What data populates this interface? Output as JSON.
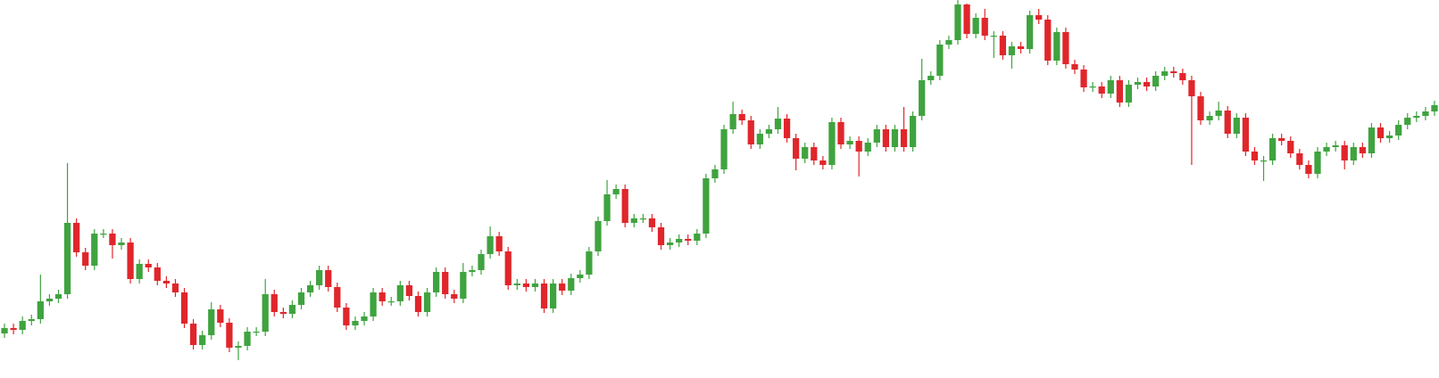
{
  "chart_data": {
    "type": "candlestick",
    "up_color": "#3fa33f",
    "down_color": "#e0262b",
    "ylim": [
      0,
      424
    ],
    "open": [
      50,
      56,
      54,
      64,
      66,
      86,
      89,
      94,
      174,
      141,
      126,
      162,
      162,
      149,
      152,
      111,
      128,
      124,
      109,
      106,
      96,
      61,
      37,
      48,
      77,
      62,
      34,
      36,
      52,
      52,
      94,
      74,
      72,
      82,
      96,
      104,
      121,
      102,
      79,
      59,
      64,
      69,
      96,
      86,
      86,
      104,
      92,
      74,
      96,
      119,
      94,
      89,
      119,
      121,
      139,
      159,
      142,
      104,
      106,
      102,
      106,
      78,
      106,
      98,
      112,
      116,
      142,
      176,
      206,
      212,
      174,
      179,
      179,
      169,
      149,
      152,
      156,
      154,
      162,
      224,
      234,
      279,
      296,
      289,
      262,
      274,
      279,
      291,
      269,
      246,
      259,
      244,
      239,
      287,
      262,
      266,
      254,
      264,
      279,
      259,
      279,
      259,
      294,
      334,
      339,
      374,
      379,
      419,
      386,
      404,
      384,
      384,
      362,
      372,
      369,
      407,
      402,
      356,
      388,
      352,
      346,
      326,
      327,
      319,
      334,
      309,
      329,
      332,
      327,
      339,
      344,
      342,
      334,
      316,
      289,
      294,
      300,
      274,
      292,
      254,
      244,
      244,
      269,
      266,
      252,
      239,
      229,
      254,
      259,
      261,
      244,
      259,
      252,
      281,
      269,
      272,
      284,
      292,
      294,
      299
    ],
    "high": [
      61,
      61,
      69,
      71,
      116,
      94,
      99,
      241,
      179,
      146,
      167,
      167,
      167,
      157,
      157,
      133,
      133,
      129,
      114,
      111,
      101,
      66,
      53,
      85,
      82,
      67,
      41,
      57,
      57,
      111,
      99,
      79,
      87,
      101,
      109,
      126,
      126,
      107,
      84,
      69,
      74,
      101,
      101,
      91,
      109,
      109,
      97,
      101,
      124,
      124,
      99,
      129,
      126,
      144,
      170,
      164,
      147,
      111,
      111,
      111,
      111,
      111,
      111,
      117,
      121,
      147,
      181,
      222,
      217,
      217,
      184,
      184,
      184,
      174,
      157,
      161,
      161,
      167,
      229,
      239,
      284,
      310,
      301,
      294,
      279,
      284,
      304,
      296,
      274,
      264,
      264,
      249,
      292,
      292,
      271,
      271,
      269,
      284,
      284,
      284,
      304,
      299,
      358,
      344,
      379,
      384,
      424,
      420,
      409,
      414,
      389,
      389,
      377,
      377,
      412,
      414,
      407,
      393,
      393,
      357,
      351,
      332,
      332,
      339,
      339,
      334,
      337,
      337,
      344,
      349,
      349,
      347,
      339,
      321,
      299,
      310,
      305,
      297,
      297,
      259,
      249,
      274,
      274,
      271,
      257,
      244,
      259,
      264,
      266,
      266,
      264,
      264,
      286,
      286,
      277,
      289,
      297,
      299,
      304,
      311
    ],
    "low": [
      45,
      49,
      49,
      59,
      61,
      81,
      84,
      89,
      136,
      121,
      121,
      157,
      134,
      144,
      106,
      106,
      119,
      104,
      101,
      91,
      56,
      32,
      32,
      43,
      57,
      29,
      20,
      31,
      47,
      47,
      69,
      67,
      67,
      77,
      91,
      99,
      97,
      74,
      54,
      54,
      59,
      64,
      81,
      81,
      81,
      87,
      69,
      69,
      91,
      89,
      84,
      84,
      114,
      116,
      134,
      137,
      99,
      99,
      97,
      97,
      73,
      73,
      93,
      93,
      107,
      111,
      137,
      171,
      201,
      169,
      169,
      174,
      164,
      144,
      144,
      147,
      149,
      149,
      157,
      219,
      229,
      274,
      284,
      257,
      257,
      269,
      274,
      264,
      233,
      241,
      239,
      234,
      234,
      257,
      257,
      226,
      249,
      259,
      254,
      254,
      254,
      254,
      289,
      329,
      334,
      369,
      374,
      381,
      381,
      379,
      359,
      357,
      347,
      364,
      364,
      397,
      351,
      351,
      347,
      341,
      321,
      321,
      314,
      314,
      304,
      304,
      324,
      322,
      322,
      334,
      337,
      329,
      239,
      284,
      284,
      289,
      269,
      269,
      249,
      239,
      221,
      239,
      261,
      247,
      234,
      224,
      224,
      249,
      254,
      234,
      239,
      247,
      247,
      264,
      264,
      267,
      279,
      287,
      289,
      294
    ],
    "close": [
      56,
      54,
      64,
      66,
      86,
      89,
      94,
      174,
      141,
      126,
      162,
      162,
      149,
      152,
      111,
      128,
      124,
      109,
      106,
      96,
      61,
      37,
      48,
      77,
      62,
      34,
      36,
      52,
      52,
      94,
      74,
      72,
      82,
      96,
      104,
      121,
      102,
      79,
      59,
      64,
      69,
      96,
      86,
      86,
      104,
      92,
      74,
      96,
      119,
      94,
      89,
      119,
      121,
      139,
      159,
      142,
      104,
      106,
      102,
      106,
      78,
      106,
      98,
      112,
      116,
      142,
      176,
      206,
      212,
      174,
      179,
      179,
      169,
      149,
      152,
      156,
      154,
      162,
      224,
      234,
      279,
      296,
      289,
      262,
      274,
      279,
      291,
      269,
      246,
      259,
      244,
      239,
      287,
      262,
      266,
      254,
      264,
      279,
      259,
      279,
      259,
      294,
      334,
      339,
      374,
      379,
      419,
      386,
      404,
      384,
      384,
      362,
      372,
      369,
      407,
      402,
      356,
      388,
      352,
      346,
      326,
      327,
      319,
      334,
      309,
      329,
      332,
      327,
      339,
      344,
      342,
      334,
      316,
      289,
      294,
      300,
      274,
      292,
      254,
      244,
      244,
      269,
      266,
      252,
      239,
      229,
      254,
      259,
      261,
      244,
      259,
      252,
      281,
      269,
      272,
      284,
      292,
      294,
      299,
      306
    ]
  }
}
